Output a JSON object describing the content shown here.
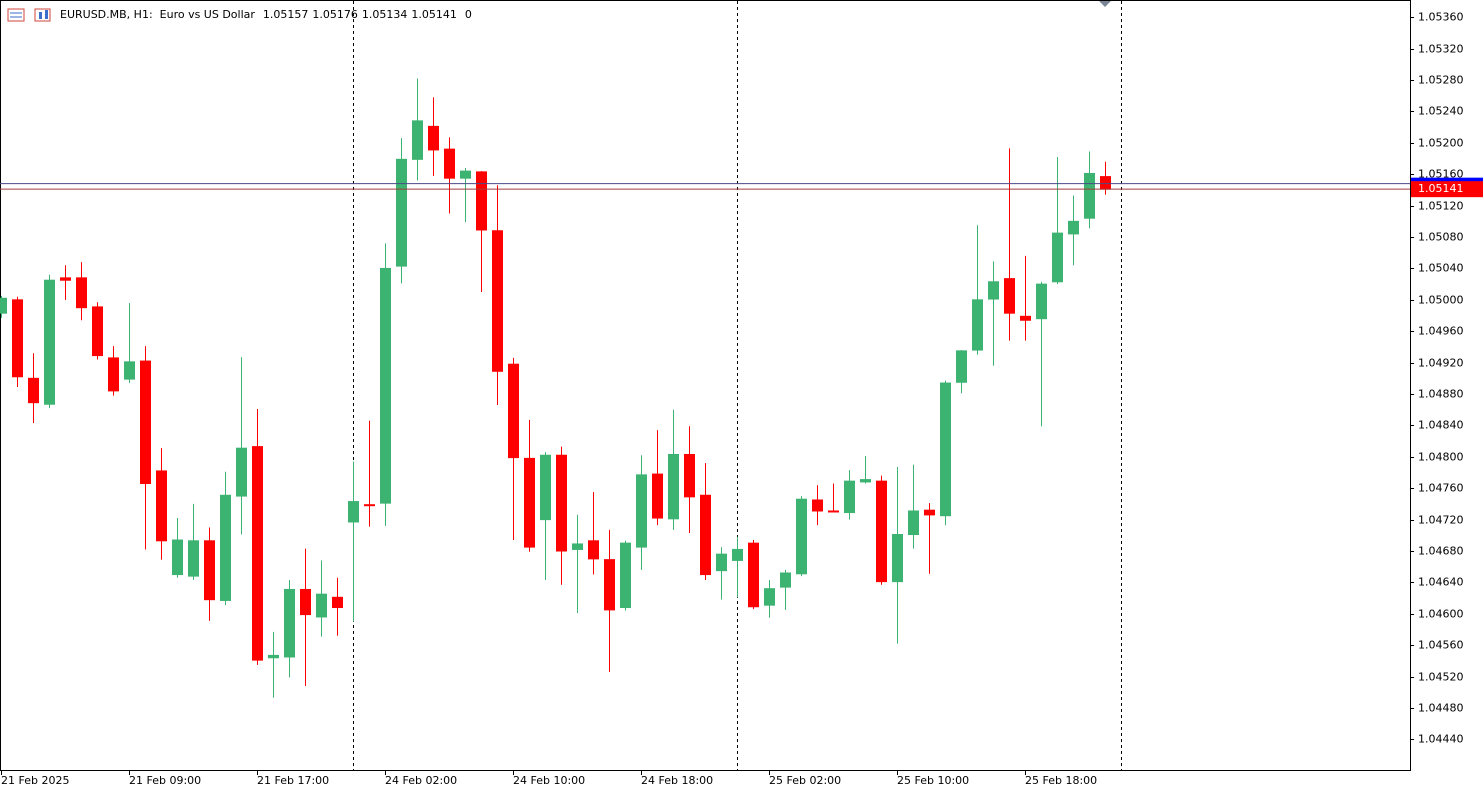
{
  "chart_data": {
    "type": "candlestick",
    "title": "EURUSD.MB, H1:  Euro vs US Dollar",
    "header_counter": 0,
    "up_color": "#3cb371",
    "down_color": "#ff0000",
    "bid": 1.05141,
    "ask": 1.05148,
    "categories": [
      "21 Feb 2025",
      null,
      null,
      null,
      null,
      null,
      null,
      null,
      "21 Feb 09:00",
      null,
      null,
      null,
      null,
      null,
      null,
      null,
      "21 Feb 17:00",
      null,
      null,
      null,
      null,
      null,
      null,
      null,
      "24 Feb 02:00",
      null,
      null,
      null,
      null,
      null,
      null,
      null,
      "24 Feb 10:00",
      null,
      null,
      null,
      null,
      null,
      null,
      null,
      "24 Feb 18:00",
      null,
      null,
      null,
      null,
      null,
      null,
      null,
      "25 Feb 02:00",
      null,
      null,
      null,
      null,
      null,
      null,
      null,
      "25 Feb 10:00",
      null,
      null,
      null,
      null,
      null,
      null,
      null,
      "25 Feb 18:00",
      null,
      null,
      null,
      null,
      null
    ],
    "open": [
      1.04983,
      1.05,
      1.049,
      1.04867,
      1.05028,
      1.05028,
      1.04991,
      1.04926,
      1.04899,
      1.04922,
      1.04782,
      1.0465,
      1.04648,
      1.04693,
      1.04617,
      1.0475,
      1.04813,
      1.04544,
      1.04545,
      1.04631,
      1.04596,
      1.04621,
      1.04717,
      1.04739,
      1.04741,
      1.05043,
      1.05179,
      1.05221,
      1.05192,
      1.05155,
      1.05163,
      1.05088,
      1.04918,
      1.04798,
      1.0472,
      1.04802,
      1.04682,
      1.04693,
      1.04669,
      1.04608,
      1.04685,
      1.04778,
      1.04721,
      1.04803,
      1.04751,
      1.04655,
      1.04668,
      1.0469,
      1.04611,
      1.04634,
      1.04651,
      1.04745,
      1.04731,
      1.04729,
      1.04768,
      1.04769,
      1.04641,
      1.04701,
      1.04732,
      1.04725,
      1.04895,
      1.04936,
      1.05001,
      1.05027,
      1.04979,
      1.04976,
      1.05023,
      1.05084,
      1.05104,
      1.05157
    ],
    "high": [
      1.05005,
      1.05004,
      1.04932,
      1.05032,
      1.05044,
      1.05048,
      1.04997,
      1.04941,
      1.04996,
      1.04941,
      1.04811,
      1.04722,
      1.0474,
      1.0471,
      1.04781,
      1.04927,
      1.04861,
      1.04577,
      1.04643,
      1.04683,
      1.04668,
      1.04646,
      1.04794,
      1.04846,
      1.05072,
      1.05206,
      1.05282,
      1.05258,
      1.05207,
      1.05168,
      1.05164,
      1.05146,
      1.04926,
      1.04847,
      1.04806,
      1.04813,
      1.04726,
      1.04755,
      1.04707,
      1.04693,
      1.04802,
      1.04834,
      1.0486,
      1.04839,
      1.04792,
      1.04685,
      1.04698,
      1.04694,
      1.04643,
      1.04656,
      1.0475,
      1.04764,
      1.04766,
      1.04783,
      1.04801,
      1.04776,
      1.04787,
      1.0479,
      1.04741,
      1.04897,
      1.04936,
      1.05095,
      1.05049,
      1.05193,
      1.05056,
      1.05023,
      1.05182,
      1.05133,
      1.05189,
      1.05176
    ],
    "low": [
      1.04977,
      1.04889,
      1.04843,
      1.04862,
      1.05,
      1.04974,
      1.04924,
      1.04878,
      1.04894,
      1.04682,
      1.04669,
      1.04646,
      1.04643,
      1.04591,
      1.04611,
      1.04701,
      1.04535,
      1.04493,
      1.04519,
      1.04508,
      1.04571,
      1.04572,
      1.0459,
      1.04711,
      1.04712,
      1.05021,
      1.05152,
      1.05158,
      1.0511,
      1.05099,
      1.0501,
      1.04866,
      1.04694,
      1.04679,
      1.04643,
      1.04637,
      1.04601,
      1.0465,
      1.04526,
      1.04604,
      1.04656,
      1.04713,
      1.04707,
      1.04703,
      1.04643,
      1.04618,
      1.04621,
      1.04606,
      1.04595,
      1.04605,
      1.04648,
      1.04713,
      1.04729,
      1.0472,
      1.04766,
      1.04637,
      1.04562,
      1.04683,
      1.04651,
      1.04713,
      1.04881,
      1.0493,
      1.04916,
      1.04948,
      1.04948,
      1.04839,
      1.0502,
      1.05044,
      1.05091,
      1.05134
    ],
    "close": [
      1.05002,
      1.04902,
      1.04869,
      1.05025,
      1.05025,
      1.0499,
      1.04929,
      1.04884,
      1.04921,
      1.04766,
      1.04693,
      1.04694,
      1.04693,
      1.04618,
      1.04751,
      1.04811,
      1.04541,
      1.04547,
      1.04631,
      1.04599,
      1.04625,
      1.04608,
      1.04743,
      1.04738,
      1.0504,
      1.05179,
      1.05228,
      1.05191,
      1.05155,
      1.05164,
      1.05089,
      1.04909,
      1.04799,
      1.04685,
      1.04802,
      1.0468,
      1.04689,
      1.0467,
      1.04605,
      1.0469,
      1.04777,
      1.04722,
      1.04803,
      1.04749,
      1.0465,
      1.04676,
      1.04682,
      1.04609,
      1.04632,
      1.04652,
      1.04746,
      1.04731,
      1.0473,
      1.04769,
      1.04771,
      1.04641,
      1.04701,
      1.04731,
      1.04726,
      1.04894,
      1.04935,
      1.05,
      1.05023,
      1.04983,
      1.04974,
      1.0502,
      1.05085,
      1.051,
      1.05161,
      1.05141
    ],
    "ylim": [
      1.04401,
      1.05382
    ],
    "yticks": [
      {
        "value": 1.0536,
        "label": "1.05360"
      },
      {
        "value": 1.0532,
        "label": "1.05320"
      },
      {
        "value": 1.0528,
        "label": "1.05280"
      },
      {
        "value": 1.0524,
        "label": "1.05240"
      },
      {
        "value": 1.052,
        "label": "1.05200"
      },
      {
        "value": 1.0516,
        "label": "1.05160"
      },
      {
        "value": 1.0512,
        "label": "1.05120"
      },
      {
        "value": 1.0508,
        "label": "1.05080"
      },
      {
        "value": 1.0504,
        "label": "1.05040"
      },
      {
        "value": 1.05,
        "label": "1.05000"
      },
      {
        "value": 1.0496,
        "label": "1.04960"
      },
      {
        "value": 1.0492,
        "label": "1.04920"
      },
      {
        "value": 1.0488,
        "label": "1.04880"
      },
      {
        "value": 1.0484,
        "label": "1.04840"
      },
      {
        "value": 1.048,
        "label": "1.04800"
      },
      {
        "value": 1.0476,
        "label": "1.04760"
      },
      {
        "value": 1.0472,
        "label": "1.04720"
      },
      {
        "value": 1.0468,
        "label": "1.04680"
      },
      {
        "value": 1.0464,
        "label": "1.04640"
      },
      {
        "value": 1.046,
        "label": "1.04600"
      },
      {
        "value": 1.0456,
        "label": "1.04560"
      },
      {
        "value": 1.0452,
        "label": "1.04520"
      },
      {
        "value": 1.0448,
        "label": "1.04480"
      },
      {
        "value": 1.0444,
        "label": "1.04440"
      }
    ],
    "grid": false
  }
}
